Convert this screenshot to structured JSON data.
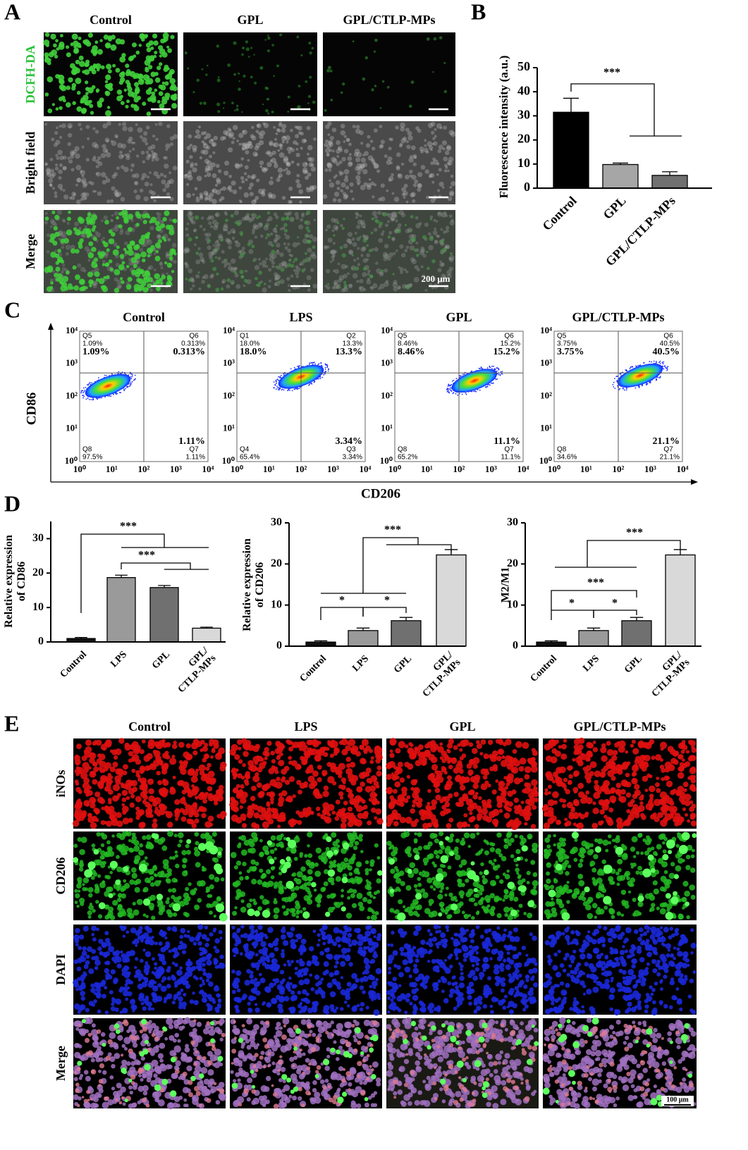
{
  "panel_a": {
    "letter": "A",
    "columns": [
      "Control",
      "GPL",
      "GPL/CTLP-MPs"
    ],
    "rows": [
      "DCFH-DA",
      "Bright field",
      "Merge"
    ],
    "scale_bar": "200 μm"
  },
  "chart_data": [
    {
      "type": "bar",
      "panel_label": "B",
      "y_label": "Fluorescence intensity (a.u.)",
      "categories": [
        "Control",
        "GPL",
        "GPL/CTLP-MPs"
      ],
      "values": [
        31.5,
        9.8,
        5.3
      ],
      "errors": [
        5.8,
        0.6,
        1.5
      ],
      "colors": [
        "#000000",
        "#a6a6a6",
        "#707070"
      ],
      "ylim": [
        0,
        50
      ],
      "yticks": [
        0,
        10,
        20,
        30,
        40,
        50
      ],
      "annotations": [
        "***"
      ]
    },
    {
      "type": "bar",
      "panel_label": "D",
      "y_label": "Relative expression\nof CD86",
      "categories": [
        "Control",
        "LPS",
        "GPL",
        "GPL/\nCTLP-MPs"
      ],
      "values": [
        1.0,
        18.7,
        15.8,
        4.0
      ],
      "errors": [
        0.3,
        0.7,
        0.6,
        0.3
      ],
      "colors": [
        "#111111",
        "#9a9a9a",
        "#707070",
        "#d9d9d9"
      ],
      "ylim": [
        0,
        35
      ],
      "yticks": [
        0,
        10,
        20,
        30
      ],
      "annotations": [
        "***",
        "***"
      ]
    },
    {
      "type": "bar",
      "y_label": "Relative expression\nof CD206",
      "categories": [
        "Control",
        "LPS",
        "GPL",
        "GPL/\nCTLP-MPs"
      ],
      "values": [
        1.0,
        3.8,
        6.2,
        22.2
      ],
      "errors": [
        0.3,
        0.6,
        0.8,
        1.3
      ],
      "colors": [
        "#111111",
        "#9a9a9a",
        "#707070",
        "#d9d9d9"
      ],
      "ylim": [
        0,
        30
      ],
      "yticks": [
        0,
        10,
        20,
        30
      ],
      "annotations": [
        "*",
        "*",
        "***"
      ]
    },
    {
      "type": "bar",
      "y_label": "M2/M1",
      "categories": [
        "Control",
        "LPS",
        "GPL",
        "GPL/\nCTLP-MPs"
      ],
      "values": [
        1.0,
        3.8,
        6.2,
        22.2
      ],
      "errors": [
        0.3,
        0.6,
        0.8,
        1.3
      ],
      "colors": [
        "#111111",
        "#9a9a9a",
        "#707070",
        "#d9d9d9"
      ],
      "ylim": [
        0,
        30
      ],
      "yticks": [
        0,
        10,
        20,
        30
      ],
      "annotations": [
        "*",
        "*",
        "***",
        "***"
      ]
    }
  ],
  "panel_c": {
    "letter": "C",
    "columns": [
      "Control",
      "LPS",
      "GPL",
      "GPL/CTLP-MPs"
    ],
    "x_label": "CD206",
    "y_label": "CD86",
    "tick_labels": [
      "10⁰",
      "10¹",
      "10²",
      "10³",
      "10⁴"
    ],
    "plots": [
      {
        "ul": {
          "gate": "Q5",
          "percent": "1.09%"
        },
        "ur": {
          "gate": "Q6",
          "percent": "0.313%"
        },
        "ll": {
          "gate": "Q8",
          "percent": "97.5%"
        },
        "lr": {
          "gate": "Q7",
          "percent": "1.11%"
        }
      },
      {
        "ul": {
          "gate": "Q1",
          "percent": "18.0%"
        },
        "ur": {
          "gate": "Q2",
          "percent": "13.3%"
        },
        "ll": {
          "gate": "Q4",
          "percent": "65.4%"
        },
        "lr": {
          "gate": "Q3",
          "percent": "3.34%"
        }
      },
      {
        "ul": {
          "gate": "Q5",
          "percent": "8.46%"
        },
        "ur": {
          "gate": "Q6",
          "percent": "15.2%"
        },
        "ll": {
          "gate": "Q8",
          "percent": "65.2%"
        },
        "lr": {
          "gate": "Q7",
          "percent": "11.1%"
        }
      },
      {
        "ul": {
          "gate": "Q5",
          "percent": "3.75%"
        },
        "ur": {
          "gate": "Q6",
          "percent": "40.5%"
        },
        "ll": {
          "gate": "Q8",
          "percent": "34.6%"
        },
        "lr": {
          "gate": "Q7",
          "percent": "21.1%"
        }
      }
    ]
  },
  "panel_e": {
    "letter": "E",
    "columns": [
      "Control",
      "LPS",
      "GPL",
      "GPL/CTLP-MPs"
    ],
    "rows": [
      "iNOs",
      "CD206",
      "DAPI",
      "Merge"
    ],
    "scale_bar": "100 μm"
  }
}
